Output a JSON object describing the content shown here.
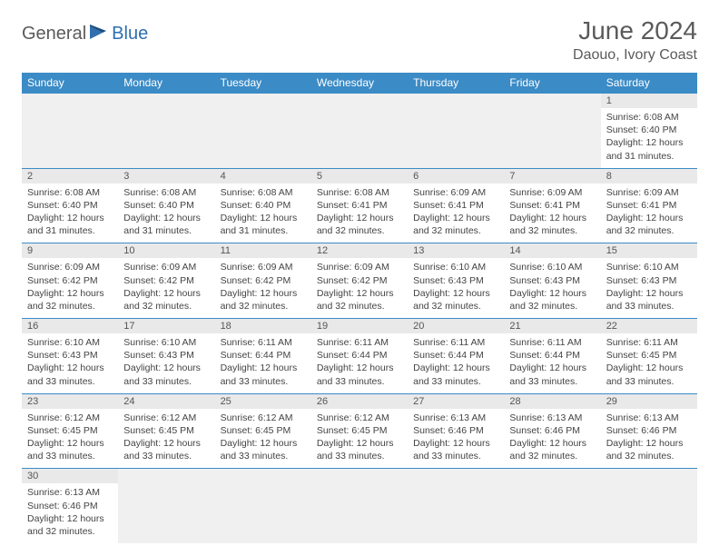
{
  "logo": {
    "part1": "General",
    "part2": "Blue"
  },
  "title": "June 2024",
  "location": "Daouo, Ivory Coast",
  "colors": {
    "header_bg": "#3b8bc6",
    "header_text": "#ffffff",
    "daynum_bg": "#e9e9e9",
    "border": "#3b8bc6",
    "logo_gray": "#5a5a5a",
    "logo_blue": "#2f6fb0"
  },
  "weekdays": [
    "Sunday",
    "Monday",
    "Tuesday",
    "Wednesday",
    "Thursday",
    "Friday",
    "Saturday"
  ],
  "weeks": [
    [
      null,
      null,
      null,
      null,
      null,
      null,
      {
        "n": "1",
        "sr": "6:08 AM",
        "ss": "6:40 PM",
        "dl": "12 hours and 31 minutes."
      }
    ],
    [
      {
        "n": "2",
        "sr": "6:08 AM",
        "ss": "6:40 PM",
        "dl": "12 hours and 31 minutes."
      },
      {
        "n": "3",
        "sr": "6:08 AM",
        "ss": "6:40 PM",
        "dl": "12 hours and 31 minutes."
      },
      {
        "n": "4",
        "sr": "6:08 AM",
        "ss": "6:40 PM",
        "dl": "12 hours and 31 minutes."
      },
      {
        "n": "5",
        "sr": "6:08 AM",
        "ss": "6:41 PM",
        "dl": "12 hours and 32 minutes."
      },
      {
        "n": "6",
        "sr": "6:09 AM",
        "ss": "6:41 PM",
        "dl": "12 hours and 32 minutes."
      },
      {
        "n": "7",
        "sr": "6:09 AM",
        "ss": "6:41 PM",
        "dl": "12 hours and 32 minutes."
      },
      {
        "n": "8",
        "sr": "6:09 AM",
        "ss": "6:41 PM",
        "dl": "12 hours and 32 minutes."
      }
    ],
    [
      {
        "n": "9",
        "sr": "6:09 AM",
        "ss": "6:42 PM",
        "dl": "12 hours and 32 minutes."
      },
      {
        "n": "10",
        "sr": "6:09 AM",
        "ss": "6:42 PM",
        "dl": "12 hours and 32 minutes."
      },
      {
        "n": "11",
        "sr": "6:09 AM",
        "ss": "6:42 PM",
        "dl": "12 hours and 32 minutes."
      },
      {
        "n": "12",
        "sr": "6:09 AM",
        "ss": "6:42 PM",
        "dl": "12 hours and 32 minutes."
      },
      {
        "n": "13",
        "sr": "6:10 AM",
        "ss": "6:43 PM",
        "dl": "12 hours and 32 minutes."
      },
      {
        "n": "14",
        "sr": "6:10 AM",
        "ss": "6:43 PM",
        "dl": "12 hours and 32 minutes."
      },
      {
        "n": "15",
        "sr": "6:10 AM",
        "ss": "6:43 PM",
        "dl": "12 hours and 33 minutes."
      }
    ],
    [
      {
        "n": "16",
        "sr": "6:10 AM",
        "ss": "6:43 PM",
        "dl": "12 hours and 33 minutes."
      },
      {
        "n": "17",
        "sr": "6:10 AM",
        "ss": "6:43 PM",
        "dl": "12 hours and 33 minutes."
      },
      {
        "n": "18",
        "sr": "6:11 AM",
        "ss": "6:44 PM",
        "dl": "12 hours and 33 minutes."
      },
      {
        "n": "19",
        "sr": "6:11 AM",
        "ss": "6:44 PM",
        "dl": "12 hours and 33 minutes."
      },
      {
        "n": "20",
        "sr": "6:11 AM",
        "ss": "6:44 PM",
        "dl": "12 hours and 33 minutes."
      },
      {
        "n": "21",
        "sr": "6:11 AM",
        "ss": "6:44 PM",
        "dl": "12 hours and 33 minutes."
      },
      {
        "n": "22",
        "sr": "6:11 AM",
        "ss": "6:45 PM",
        "dl": "12 hours and 33 minutes."
      }
    ],
    [
      {
        "n": "23",
        "sr": "6:12 AM",
        "ss": "6:45 PM",
        "dl": "12 hours and 33 minutes."
      },
      {
        "n": "24",
        "sr": "6:12 AM",
        "ss": "6:45 PM",
        "dl": "12 hours and 33 minutes."
      },
      {
        "n": "25",
        "sr": "6:12 AM",
        "ss": "6:45 PM",
        "dl": "12 hours and 33 minutes."
      },
      {
        "n": "26",
        "sr": "6:12 AM",
        "ss": "6:45 PM",
        "dl": "12 hours and 33 minutes."
      },
      {
        "n": "27",
        "sr": "6:13 AM",
        "ss": "6:46 PM",
        "dl": "12 hours and 33 minutes."
      },
      {
        "n": "28",
        "sr": "6:13 AM",
        "ss": "6:46 PM",
        "dl": "12 hours and 32 minutes."
      },
      {
        "n": "29",
        "sr": "6:13 AM",
        "ss": "6:46 PM",
        "dl": "12 hours and 32 minutes."
      }
    ],
    [
      {
        "n": "30",
        "sr": "6:13 AM",
        "ss": "6:46 PM",
        "dl": "12 hours and 32 minutes."
      },
      null,
      null,
      null,
      null,
      null,
      null
    ]
  ],
  "labels": {
    "sunrise": "Sunrise:",
    "sunset": "Sunset:",
    "daylight": "Daylight:"
  }
}
